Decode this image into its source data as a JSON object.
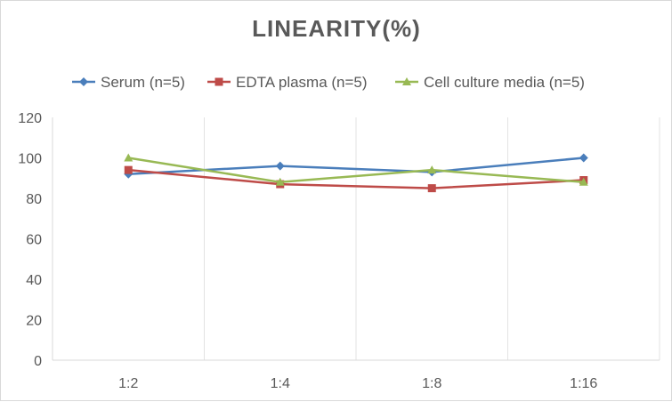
{
  "chart_data": {
    "type": "line",
    "title": "LINEARITY(%)",
    "xlabel": "",
    "ylabel": "",
    "categories": [
      "1:2",
      "1:4",
      "1:8",
      "1:16"
    ],
    "ylim": [
      0,
      120
    ],
    "yticks": [
      0,
      20,
      40,
      60,
      80,
      100,
      120
    ],
    "grid": "vertical",
    "legend_position": "top",
    "series": [
      {
        "name": "Serum (n=5)",
        "values": [
          92,
          96,
          93,
          100
        ],
        "color": "#4a7ebb",
        "marker": "diamond"
      },
      {
        "name": "EDTA plasma (n=5)",
        "values": [
          94,
          87,
          85,
          89
        ],
        "color": "#be4b48",
        "marker": "square"
      },
      {
        "name": "Cell culture media (n=5)",
        "values": [
          100,
          88,
          94,
          88
        ],
        "color": "#98b954",
        "marker": "triangle"
      }
    ]
  }
}
